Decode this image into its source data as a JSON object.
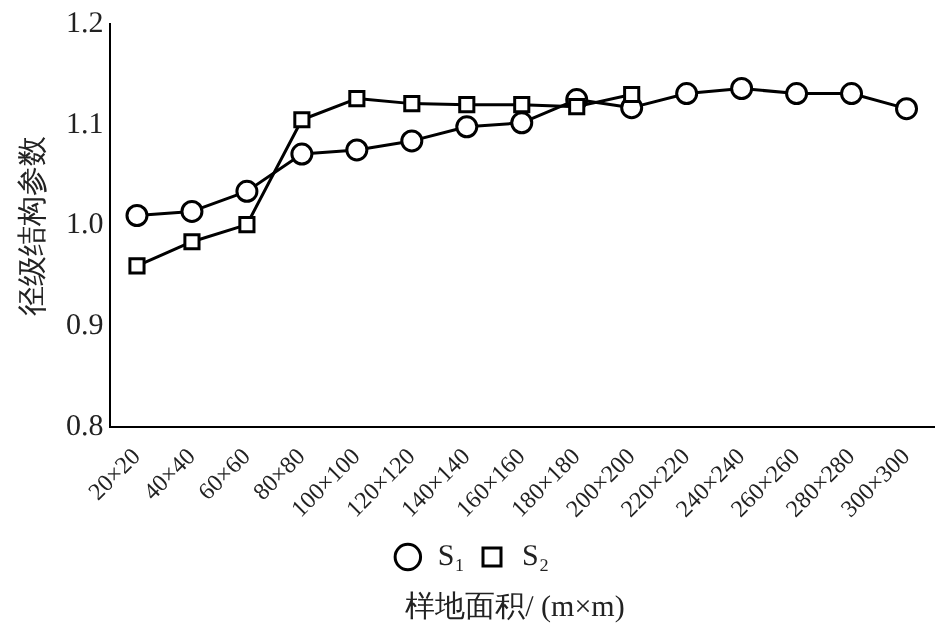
{
  "chart_data": {
    "type": "line",
    "ylabel": "径级结构参数",
    "xlabel": "样地面积/ (m×m)",
    "categories": [
      "20×20",
      "40×40",
      "60×60",
      "80×80",
      "100×100",
      "120×120",
      "140×140",
      "160×160",
      "180×180",
      "200×200",
      "220×220",
      "240×240",
      "260×260",
      "280×280",
      "300×300"
    ],
    "series": [
      {
        "name": "S₁",
        "color": "#000000",
        "marker": "circle",
        "values": [
          1.01,
          1.014,
          1.034,
          1.071,
          1.075,
          1.084,
          1.098,
          1.102,
          1.125,
          1.117,
          1.131,
          1.136,
          1.131,
          1.131,
          1.116
        ]
      },
      {
        "name": "S₂",
        "color": "#000000",
        "marker": "square",
        "values": [
          0.96,
          0.984,
          1.001,
          1.105,
          1.126,
          1.121,
          1.12,
          1.12,
          1.118,
          1.13,
          null,
          null,
          null,
          null,
          null
        ]
      }
    ],
    "ylim": [
      0.8,
      1.2
    ],
    "yticks": [
      {
        "value": 0.8,
        "label": "0.8"
      },
      {
        "value": 0.9,
        "label": "0.9"
      },
      {
        "value": 1.0,
        "label": "1.0"
      },
      {
        "value": 1.1,
        "label": "1.1"
      },
      {
        "value": 1.2,
        "label": "1.2"
      }
    ],
    "grid": false,
    "legend": "bottom",
    "line_style": "solid"
  }
}
